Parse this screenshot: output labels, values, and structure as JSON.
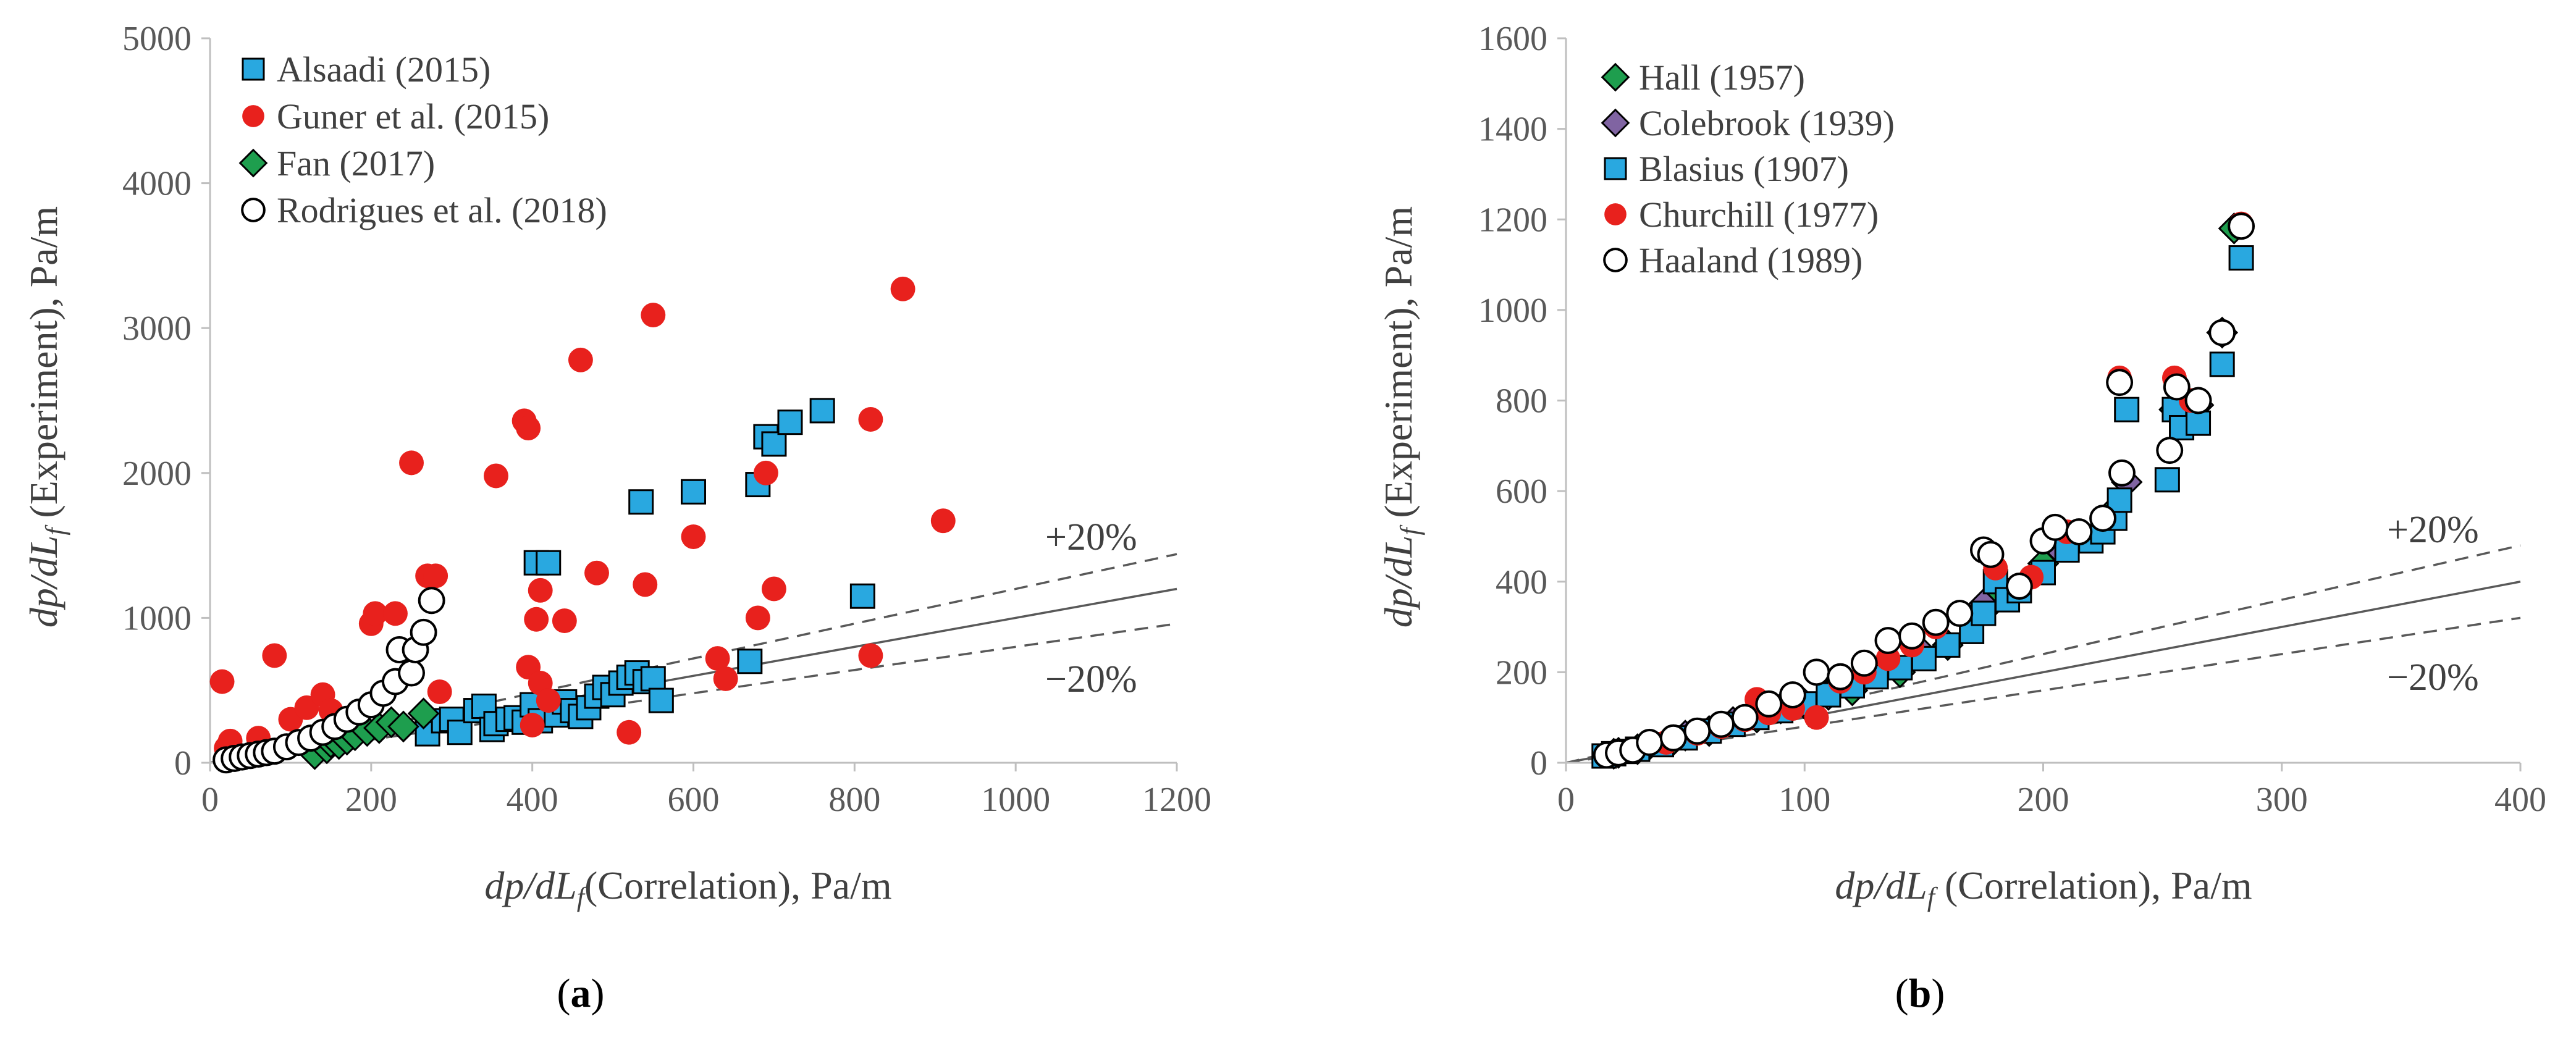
{
  "chart_data": [
    {
      "type": "scatter",
      "panel_label": "a",
      "title": "",
      "xlabel": "dp/dLf(Correlation), Pa/m",
      "ylabel": "dp/dLf (Experiment), Pa/m",
      "xlabel_parts": [
        "dp/dL",
        "f",
        "(Correlation), Pa/m"
      ],
      "ylabel_parts": [
        "dp/dL",
        "f",
        " (Experiment), Pa/m"
      ],
      "xlim": [
        0,
        1200
      ],
      "ylim": [
        0,
        5000
      ],
      "xticks": [
        "0",
        "200",
        "400",
        "600",
        "800",
        "1000",
        "1200"
      ],
      "yticks": [
        "0",
        "1000",
        "2000",
        "3000",
        "4000",
        "5000"
      ],
      "grid": false,
      "legend_position": "top-left",
      "reference_lines": [
        {
          "name": "1:1",
          "slope": 1.0,
          "style": "solid"
        },
        {
          "name": "+20%",
          "slope": 1.2,
          "style": "dashed",
          "label": "+20%"
        },
        {
          "name": "−20%",
          "slope": 0.8,
          "style": "dashed",
          "label": "−20%"
        }
      ],
      "series": [
        {
          "name": "Alsaadi (2015)",
          "marker": "square",
          "color": "#29a8e0",
          "points": [
            [
              270,
              200
            ],
            [
              290,
              290
            ],
            [
              300,
              300
            ],
            [
              310,
              210
            ],
            [
              330,
              360
            ],
            [
              340,
              390
            ],
            [
              350,
              230
            ],
            [
              355,
              270
            ],
            [
              370,
              300
            ],
            [
              380,
              310
            ],
            [
              390,
              280
            ],
            [
              400,
              400
            ],
            [
              405,
              1380
            ],
            [
              410,
              290
            ],
            [
              420,
              1380
            ],
            [
              430,
              330
            ],
            [
              440,
              420
            ],
            [
              450,
              360
            ],
            [
              460,
              320
            ],
            [
              470,
              380
            ],
            [
              480,
              460
            ],
            [
              490,
              520
            ],
            [
              500,
              470
            ],
            [
              510,
              550
            ],
            [
              520,
              590
            ],
            [
              530,
              620
            ],
            [
              535,
              1800
            ],
            [
              540,
              560
            ],
            [
              550,
              580
            ],
            [
              560,
              430
            ],
            [
              600,
              1870
            ],
            [
              670,
              700
            ],
            [
              680,
              1920
            ],
            [
              690,
              2250
            ],
            [
              700,
              2200
            ],
            [
              720,
              2350
            ],
            [
              760,
              2430
            ],
            [
              810,
              1150
            ]
          ]
        },
        {
          "name": "Guner et al. (2015)",
          "marker": "circle",
          "color": "#e8211d",
          "points": [
            [
              15,
              560
            ],
            [
              20,
              100
            ],
            [
              25,
              150
            ],
            [
              30,
              50
            ],
            [
              60,
              170
            ],
            [
              80,
              740
            ],
            [
              100,
              300
            ],
            [
              120,
              380
            ],
            [
              140,
              470
            ],
            [
              150,
              360
            ],
            [
              200,
              960
            ],
            [
              205,
              1030
            ],
            [
              230,
              1030
            ],
            [
              250,
              2070
            ],
            [
              270,
              1290
            ],
            [
              280,
              1290
            ],
            [
              285,
              490
            ],
            [
              355,
              1980
            ],
            [
              390,
              2360
            ],
            [
              395,
              2310
            ],
            [
              395,
              660
            ],
            [
              400,
              260
            ],
            [
              405,
              990
            ],
            [
              410,
              1190
            ],
            [
              410,
              550
            ],
            [
              420,
              430
            ],
            [
              440,
              980
            ],
            [
              460,
              2780
            ],
            [
              480,
              1310
            ],
            [
              520,
              210
            ],
            [
              540,
              1230
            ],
            [
              550,
              3090
            ],
            [
              600,
              1560
            ],
            [
              630,
              720
            ],
            [
              640,
              580
            ],
            [
              680,
              1000
            ],
            [
              690,
              2000
            ],
            [
              700,
              1200
            ],
            [
              820,
              2370
            ],
            [
              820,
              740
            ],
            [
              860,
              3270
            ],
            [
              910,
              1670
            ]
          ]
        },
        {
          "name": "Fan (2017)",
          "marker": "diamond",
          "color": "#1e9e4e",
          "points": [
            [
              130,
              60
            ],
            [
              145,
              100
            ],
            [
              150,
              140
            ],
            [
              160,
              130
            ],
            [
              170,
              160
            ],
            [
              180,
              190
            ],
            [
              195,
              220
            ],
            [
              210,
              240
            ],
            [
              225,
              280
            ],
            [
              240,
              250
            ],
            [
              265,
              340
            ]
          ]
        },
        {
          "name": "Rodrigues et al. (2018)",
          "marker": "open-circle",
          "color": "#ffffff",
          "points": [
            [
              20,
              20
            ],
            [
              30,
              30
            ],
            [
              40,
              40
            ],
            [
              50,
              50
            ],
            [
              60,
              60
            ],
            [
              70,
              70
            ],
            [
              80,
              80
            ],
            [
              95,
              110
            ],
            [
              110,
              140
            ],
            [
              125,
              170
            ],
            [
              140,
              210
            ],
            [
              155,
              250
            ],
            [
              170,
              300
            ],
            [
              185,
              350
            ],
            [
              200,
              400
            ],
            [
              215,
              480
            ],
            [
              230,
              560
            ],
            [
              235,
              780
            ],
            [
              250,
              620
            ],
            [
              255,
              780
            ],
            [
              265,
              900
            ],
            [
              275,
              1120
            ]
          ]
        }
      ]
    },
    {
      "type": "scatter",
      "panel_label": "b",
      "title": "",
      "xlabel": "dp/dLf (Correlation), Pa/m",
      "ylabel": "dp/dLf (Experiment), Pa/m",
      "xlabel_parts": [
        "dp/dL",
        "f",
        " (Correlation), Pa/m"
      ],
      "ylabel_parts": [
        "dp/dL",
        "f",
        " (Experiment), Pa/m"
      ],
      "xlim": [
        0,
        400
      ],
      "ylim": [
        0,
        1600
      ],
      "xticks": [
        "0",
        "100",
        "200",
        "300",
        "400"
      ],
      "yticks": [
        "0",
        "200",
        "400",
        "600",
        "800",
        "1000",
        "1200",
        "1400",
        "1600"
      ],
      "grid": false,
      "legend_position": "top-left",
      "reference_lines": [
        {
          "name": "1:1",
          "slope": 1.0,
          "style": "solid"
        },
        {
          "name": "+20%",
          "slope": 1.2,
          "style": "dashed",
          "label": "+20%"
        },
        {
          "name": "−20%",
          "slope": 0.8,
          "style": "dashed",
          "label": "−20%"
        }
      ],
      "series": [
        {
          "name": "Hall (1957)",
          "marker": "diamond",
          "color": "#1e9e4e",
          "points": [
            [
              20,
              20
            ],
            [
              30,
              30
            ],
            [
              45,
              50
            ],
            [
              60,
              70
            ],
            [
              80,
              100
            ],
            [
              100,
              130
            ],
            [
              120,
              160
            ],
            [
              140,
              200
            ],
            [
              160,
              260
            ],
            [
              180,
              360
            ],
            [
              200,
              440
            ],
            [
              230,
              560
            ],
            [
              255,
              780
            ],
            [
              280,
              1180
            ]
          ]
        },
        {
          "name": "Colebrook (1939)",
          "marker": "diamond",
          "color": "#8064a2",
          "points": [
            [
              22,
              22
            ],
            [
              35,
              40
            ],
            [
              50,
              60
            ],
            [
              70,
              90
            ],
            [
              90,
              120
            ],
            [
              110,
              150
            ],
            [
              130,
              200
            ],
            [
              150,
              240
            ],
            [
              175,
              350
            ],
            [
              205,
              480
            ],
            [
              235,
              620
            ],
            [
              265,
              790
            ],
            [
              275,
              950
            ]
          ]
        },
        {
          "name": "Blasius (1907)",
          "marker": "square",
          "color": "#29a8e0",
          "points": [
            [
              16,
              15
            ],
            [
              20,
              20
            ],
            [
              25,
              25
            ],
            [
              30,
              30
            ],
            [
              40,
              40
            ],
            [
              50,
              55
            ],
            [
              60,
              70
            ],
            [
              70,
              85
            ],
            [
              80,
              100
            ],
            [
              90,
              115
            ],
            [
              100,
              130
            ],
            [
              110,
              150
            ],
            [
              120,
              170
            ],
            [
              130,
              190
            ],
            [
              140,
              210
            ],
            [
              150,
              230
            ],
            [
              160,
              260
            ],
            [
              170,
              290
            ],
            [
              175,
              330
            ],
            [
              180,
              400
            ],
            [
              185,
              360
            ],
            [
              190,
              380
            ],
            [
              200,
              420
            ],
            [
              210,
              470
            ],
            [
              220,
              490
            ],
            [
              225,
              510
            ],
            [
              230,
              540
            ],
            [
              232,
              580
            ],
            [
              235,
              780
            ],
            [
              252,
              625
            ],
            [
              255,
              780
            ],
            [
              258,
              740
            ],
            [
              265,
              750
            ],
            [
              275,
              880
            ],
            [
              283,
              1115
            ]
          ]
        },
        {
          "name": "Churchill (1977)",
          "marker": "circle",
          "color": "#e8211d",
          "points": [
            [
              18,
              18
            ],
            [
              28,
              30
            ],
            [
              42,
              45
            ],
            [
              55,
              65
            ],
            [
              65,
              80
            ],
            [
              75,
              95
            ],
            [
              80,
              140
            ],
            [
              85,
              110
            ],
            [
              95,
              120
            ],
            [
              105,
              100
            ],
            [
              115,
              180
            ],
            [
              125,
              200
            ],
            [
              135,
              230
            ],
            [
              145,
              260
            ],
            [
              155,
              300
            ],
            [
              165,
              330
            ],
            [
              180,
              430
            ],
            [
              195,
              410
            ],
            [
              210,
              510
            ],
            [
              232,
              850
            ],
            [
              255,
              850
            ],
            [
              262,
              800
            ],
            [
              283,
              1190
            ]
          ]
        },
        {
          "name": "Haaland (1989)",
          "marker": "open-circle",
          "color": "#ffffff",
          "points": [
            [
              17,
              17
            ],
            [
              22,
              22
            ],
            [
              28,
              28
            ],
            [
              35,
              45
            ],
            [
              45,
              55
            ],
            [
              55,
              70
            ],
            [
              65,
              85
            ],
            [
              75,
              100
            ],
            [
              85,
              130
            ],
            [
              95,
              150
            ],
            [
              105,
              200
            ],
            [
              115,
              190
            ],
            [
              125,
              220
            ],
            [
              135,
              270
            ],
            [
              145,
              280
            ],
            [
              155,
              310
            ],
            [
              165,
              330
            ],
            [
              175,
              470
            ],
            [
              178,
              460
            ],
            [
              190,
              390
            ],
            [
              200,
              490
            ],
            [
              205,
              520
            ],
            [
              215,
              510
            ],
            [
              225,
              540
            ],
            [
              233,
              640
            ],
            [
              232,
              840
            ],
            [
              253,
              690
            ],
            [
              256,
              830
            ],
            [
              265,
              800
            ],
            [
              275,
              950
            ],
            [
              283,
              1185
            ]
          ]
        }
      ]
    }
  ]
}
